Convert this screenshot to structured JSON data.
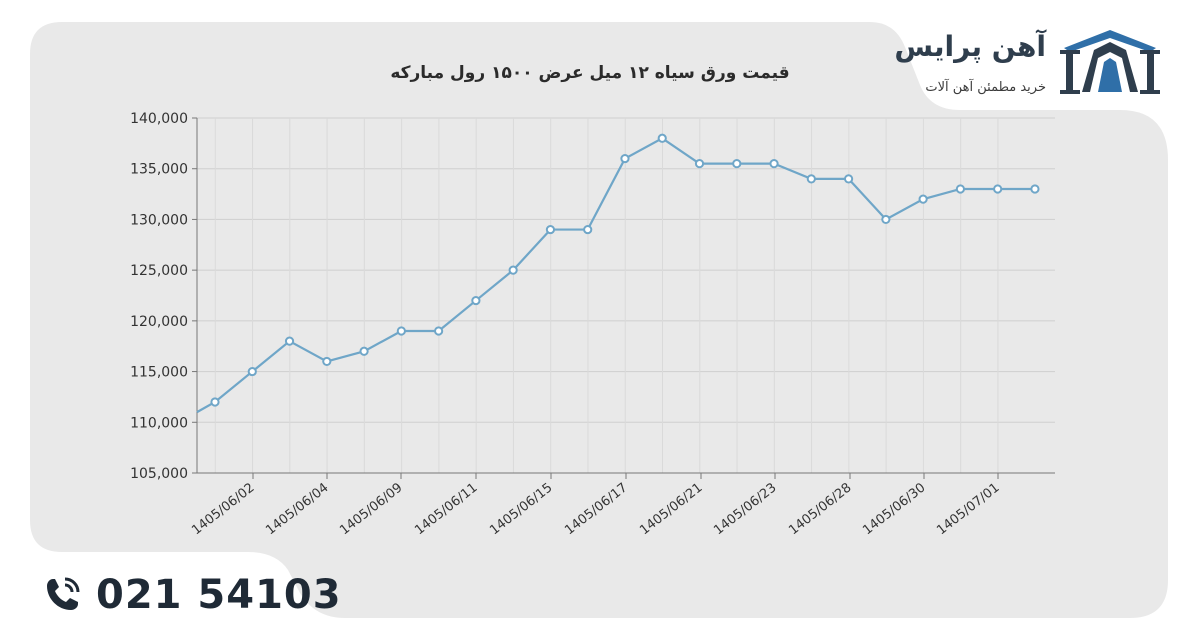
{
  "brand": {
    "name": "آهن پرایس",
    "tagline": "خرید مطمئن آهن آلات",
    "accent": "#2f6fa8",
    "dark": "#2f3e4d"
  },
  "contact": {
    "phone": "021 54103"
  },
  "chart_data": {
    "type": "line",
    "title": "قیمت ورق سیاه ۱۲ میل عرض ۱۵۰۰ رول مبارکه",
    "xlabel": "",
    "ylabel": "",
    "ylim": [
      105000,
      140000
    ],
    "yticks": [
      "105,000",
      "110,000",
      "115,000",
      "120,000",
      "125,000",
      "130,000",
      "135,000",
      "140,000"
    ],
    "ytick_values": [
      105000,
      110000,
      115000,
      120000,
      125000,
      130000,
      135000,
      140000
    ],
    "xtick_labels": [
      "1405/06/02",
      "1405/06/04",
      "1405/06/09",
      "1405/06/11",
      "1405/06/15",
      "1405/06/17",
      "1405/06/21",
      "1405/06/23",
      "1405/06/28",
      "1405/06/30",
      "1405/07/01"
    ],
    "grid": true,
    "line_color": "#6fa6c8",
    "start_value": 111000,
    "values": [
      112000,
      115000,
      118000,
      116000,
      117000,
      119000,
      119000,
      122000,
      125000,
      129000,
      129000,
      136000,
      138000,
      135500,
      135500,
      135500,
      134000,
      134000,
      130000,
      132000,
      133000,
      133000,
      133000
    ]
  }
}
